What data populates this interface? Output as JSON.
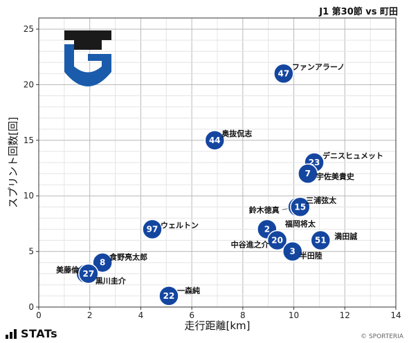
{
  "header": {
    "match": "J1 第30節 vs 町田"
  },
  "footer": {
    "brand": "STATs",
    "copyright": "© SPORTERIA"
  },
  "colors": {
    "marker": "#1446a0",
    "emblem_blue": "#1a5cab",
    "emblem_black": "#1a1a1a"
  },
  "chart_data": {
    "type": "scatter",
    "xlabel": "走行距離[km]",
    "ylabel": "スプリント回数[回]",
    "xlim": [
      0,
      14
    ],
    "ylim": [
      0,
      26
    ],
    "xticks": [
      0,
      2,
      4,
      6,
      8,
      10,
      12,
      14
    ],
    "yticks": [
      0,
      5,
      10,
      15,
      20,
      25
    ],
    "grid": true,
    "points": [
      {
        "number": "47",
        "name": "ファンアラーノ",
        "x": 9.6,
        "y": 21
      },
      {
        "number": "44",
        "name": "奥抜侃志",
        "x": 6.9,
        "y": 15
      },
      {
        "number": "23",
        "name": "デニスヒュメット",
        "x": 10.8,
        "y": 13
      },
      {
        "number": "7",
        "name": "宇佐美貴史",
        "x": 10.55,
        "y": 12
      },
      {
        "number": "13",
        "name": "三浦弦太",
        "x": 10.15,
        "y": 9
      },
      {
        "number": "15",
        "name": "鈴木徳真",
        "x": 10.25,
        "y": 9
      },
      {
        "number": "97",
        "name": "ウェルトン",
        "x": 4.45,
        "y": 7
      },
      {
        "number": "2",
        "name": "福岡将太",
        "x": 8.95,
        "y": 7
      },
      {
        "number": "51",
        "name": "満田誠",
        "x": 11.05,
        "y": 6
      },
      {
        "number": "20",
        "name": "中谷進之介",
        "x": 9.35,
        "y": 6
      },
      {
        "number": "3",
        "name": "半田陸",
        "x": 9.95,
        "y": 5
      },
      {
        "number": "8",
        "name": "食野亮太郎",
        "x": 2.5,
        "y": 4
      },
      {
        "number": "21",
        "name": "美藤倫",
        "x": 1.85,
        "y": 3
      },
      {
        "number": "27",
        "name": "黒川圭介",
        "x": 1.95,
        "y": 3
      },
      {
        "number": "22",
        "name": "一森純",
        "x": 5.1,
        "y": 1
      }
    ]
  }
}
